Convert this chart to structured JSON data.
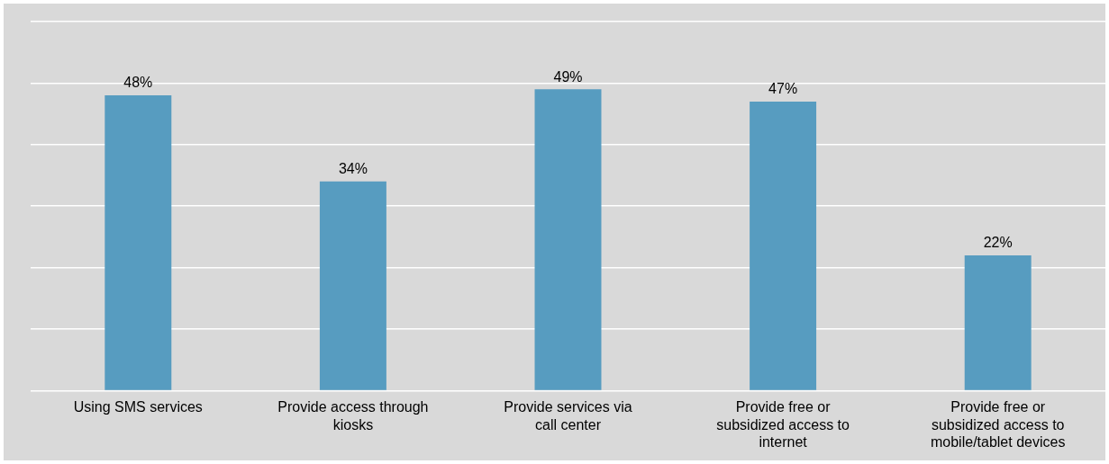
{
  "chart_data": {
    "type": "bar",
    "categories": [
      "Using SMS services",
      "Provide access through kiosks",
      "Provide services via call center",
      "Provide free or subsidized access to internet",
      "Provide free or subsidized access to mobile/tablet devices"
    ],
    "values": [
      48,
      34,
      49,
      47,
      22
    ],
    "value_labels": [
      "48%",
      "34%",
      "49%",
      "47%",
      "22%"
    ],
    "color": "#579cc0",
    "ylim": [
      0,
      60
    ],
    "yticks": [
      {
        "value": 0,
        "label": null
      },
      {
        "value": 10,
        "label": null
      },
      {
        "value": 20,
        "label": null
      },
      {
        "value": 30,
        "label": null
      },
      {
        "value": 40,
        "label": null
      },
      {
        "value": 50,
        "label": null
      },
      {
        "value": 60,
        "label": null
      }
    ],
    "tick_labels": "x",
    "grid": "y",
    "legend": false
  }
}
